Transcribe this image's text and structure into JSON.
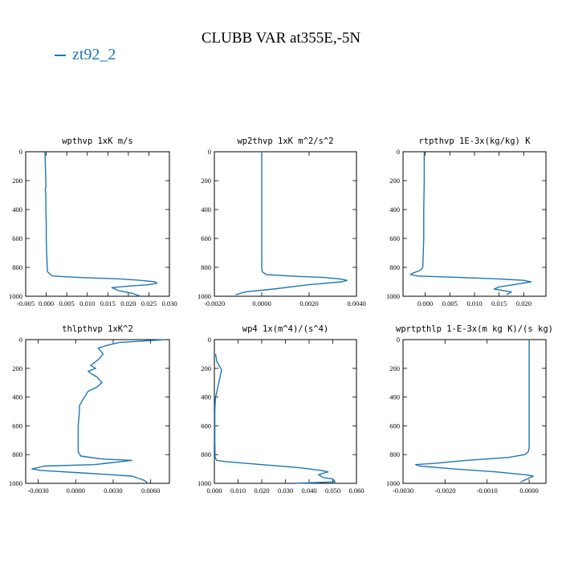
{
  "figure": {
    "title": "CLUBB VAR at355E,-5N",
    "legend_label": "zt92_2",
    "line_color": "#1f77b4"
  },
  "chart_data": [
    {
      "type": "line",
      "title": "wpthvp   1xK m/s",
      "xlim": [
        -0.005,
        0.03
      ],
      "xticks": [
        -0.005,
        0.0,
        0.005,
        0.01,
        0.015,
        0.02,
        0.025,
        0.03
      ],
      "xtick_labels": [
        "-0.005",
        "0.000",
        "0.005",
        "0.010",
        "0.015",
        "0.020",
        "0.025",
        "0.030"
      ],
      "ylim": [
        1000,
        0
      ],
      "yticks": [
        0,
        200,
        400,
        600,
        800,
        1000
      ],
      "ytick_labels": [
        "0",
        "200",
        "400",
        "600",
        "800",
        "1000"
      ],
      "series": [
        {
          "name": "zt92_2",
          "x": [
            -0.0003,
            -0.0002,
            -0.0001,
            -0.0001,
            -0.0002,
            -0.0001,
            -0.0001,
            0.0,
            0.0,
            0.0001,
            0.0003,
            0.0015,
            0.008,
            0.018,
            0.023,
            0.0265,
            0.027,
            0.025,
            0.02,
            0.016,
            0.0175,
            0.021,
            0.023
          ],
          "y": [
            0,
            100,
            200,
            240,
            260,
            300,
            400,
            500,
            600,
            700,
            830,
            860,
            870,
            880,
            890,
            900,
            910,
            920,
            930,
            940,
            960,
            980,
            1000
          ]
        }
      ]
    },
    {
      "type": "line",
      "title": "wp2thvp   1xK m^2/s^2",
      "xlim": [
        -0.002,
        0.004
      ],
      "xticks": [
        -0.002,
        0.0,
        0.002,
        0.004
      ],
      "xtick_labels": [
        "-0.0020",
        "0.0000",
        "0.0020",
        "0.0040"
      ],
      "ylim": [
        1000,
        0
      ],
      "yticks": [
        0,
        200,
        400,
        600,
        800,
        1000
      ],
      "ytick_labels": [
        "0",
        "200",
        "400",
        "600",
        "800",
        "1000"
      ],
      "series": [
        {
          "name": "zt92_2",
          "x": [
            0.0,
            0.0,
            0.0,
            0.0,
            0.0,
            0.0,
            2e-05,
            0.0002,
            0.0012,
            0.0026,
            0.0033,
            0.0036,
            0.0034,
            0.002,
            0.0005,
            -0.0007,
            -0.0011
          ],
          "y": [
            0,
            200,
            400,
            600,
            700,
            800,
            830,
            850,
            860,
            870,
            880,
            890,
            900,
            920,
            950,
            970,
            990
          ]
        }
      ]
    },
    {
      "type": "line",
      "title": "rtpthvp   1E-3x(kg/kg) K",
      "xlim": [
        -0.0045,
        0.0245
      ],
      "xticks": [
        0.0,
        0.005,
        0.01,
        0.015,
        0.02
      ],
      "xtick_labels": [
        "0.000",
        "0.005",
        "0.010",
        "0.015",
        "0.020"
      ],
      "ylim": [
        1000,
        0
      ],
      "yticks": [
        0,
        200,
        400,
        600,
        800,
        1000
      ],
      "ytick_labels": [
        "0",
        "200",
        "400",
        "600",
        "800",
        "1000"
      ],
      "series": [
        {
          "name": "zt92_2",
          "x": [
            -0.0002,
            -0.0002,
            -0.0003,
            -0.0003,
            -0.0004,
            -0.0005,
            -0.001,
            -0.0025,
            -0.003,
            -0.0015,
            0.007,
            0.015,
            0.02,
            0.0215,
            0.018,
            0.015,
            0.014,
            0.0175,
            0.0165
          ],
          "y": [
            0,
            200,
            400,
            600,
            700,
            800,
            820,
            840,
            850,
            860,
            870,
            880,
            890,
            900,
            920,
            935,
            950,
            970,
            990
          ]
        }
      ]
    },
    {
      "type": "line",
      "title": "thlpthvp   1xK^2",
      "xlim": [
        -0.004,
        0.0075
      ],
      "xticks": [
        -0.003,
        0.0,
        0.003,
        0.006
      ],
      "xtick_labels": [
        "-0.0030",
        "0.0000",
        "0.0030",
        "0.0060"
      ],
      "ylim": [
        1000,
        0
      ],
      "yticks": [
        0,
        200,
        400,
        600,
        800,
        1000
      ],
      "ytick_labels": [
        "0",
        "200",
        "400",
        "600",
        "800",
        "1000"
      ],
      "series": [
        {
          "name": "zt92_2",
          "x": [
            0.0072,
            0.0035,
            0.0025,
            0.0018,
            0.0022,
            0.0018,
            0.0012,
            0.0016,
            0.001,
            0.0013,
            0.0017,
            0.0021,
            0.0017,
            0.001,
            0.0007,
            0.0005,
            0.0003,
            0.0003,
            0.0002,
            0.0002,
            0.0002,
            0.0004,
            0.002,
            0.0045,
            0.0015,
            -0.0025,
            -0.0035,
            -0.0028,
            0.001,
            0.0045,
            0.0055,
            0.0058
          ],
          "y": [
            0,
            20,
            40,
            60,
            100,
            140,
            180,
            200,
            220,
            240,
            260,
            300,
            330,
            360,
            400,
            430,
            460,
            500,
            600,
            700,
            780,
            810,
            830,
            840,
            870,
            880,
            900,
            910,
            930,
            950,
            980,
            1000
          ]
        }
      ]
    },
    {
      "type": "line",
      "title": "wp4   1x(m^4)/(s^4)",
      "xlim": [
        0.0,
        0.06
      ],
      "xticks": [
        0.0,
        0.01,
        0.02,
        0.03,
        0.04,
        0.05,
        0.06
      ],
      "xtick_labels": [
        "0.000",
        "0.010",
        "0.020",
        "0.030",
        "0.040",
        "0.050",
        "0.060"
      ],
      "ylim": [
        1000,
        0
      ],
      "yticks": [
        0,
        200,
        400,
        600,
        800,
        1000
      ],
      "ytick_labels": [
        "0",
        "200",
        "400",
        "600",
        "800",
        "1000"
      ],
      "series": [
        {
          "name": "zt92_2",
          "x": [
            0.0005,
            0.001,
            0.002,
            0.003,
            0.0025,
            0.002,
            0.0015,
            0.001,
            0.0005,
            0.0003,
            0.0002,
            0.0002,
            0.0003,
            0.001,
            0.005,
            0.02,
            0.035,
            0.045,
            0.048,
            0.044,
            0.046,
            0.05,
            0.051,
            0.034
          ],
          "y": [
            100,
            150,
            180,
            210,
            250,
            290,
            330,
            370,
            400,
            450,
            500,
            700,
            820,
            840,
            850,
            870,
            890,
            910,
            920,
            940,
            960,
            970,
            990,
            1000
          ]
        }
      ]
    },
    {
      "type": "line",
      "title": "wprtpthlp   1-E-3x(m kg K)/(s kg)",
      "xlim": [
        -0.003,
        0.0004
      ],
      "xticks": [
        -0.003,
        -0.002,
        -0.001,
        0.0
      ],
      "xtick_labels": [
        "-0.0030",
        "-0.0020",
        "-0.0010",
        "0.0000"
      ],
      "ylim": [
        1000,
        0
      ],
      "yticks": [
        0,
        200,
        400,
        600,
        800,
        1000
      ],
      "ytick_labels": [
        "0",
        "200",
        "400",
        "600",
        "800",
        "1000"
      ],
      "series": [
        {
          "name": "zt92_2",
          "x": [
            0.0,
            0.0,
            0.0,
            0.0,
            0.0,
            -2e-05,
            -0.0001,
            -0.0005,
            -0.0015,
            -0.0022,
            -0.0027,
            -0.0026,
            -0.0018,
            -0.0008,
            -0.0001,
            0.0001,
            -5e-05,
            -0.0002
          ],
          "y": [
            0,
            200,
            400,
            600,
            750,
            780,
            800,
            820,
            840,
            860,
            870,
            880,
            900,
            920,
            940,
            950,
            970,
            990
          ]
        }
      ]
    }
  ]
}
